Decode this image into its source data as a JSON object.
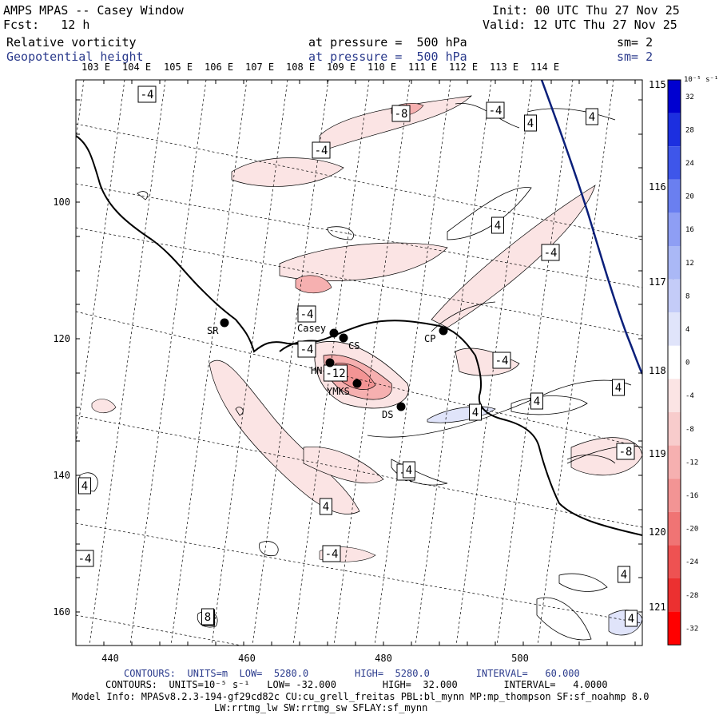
{
  "header": {
    "title": "AMPS MPAS -- Casey Window",
    "fcst": "Fcst:   12 h",
    "init": "Init: 00 UTC Thu 27 Nov 25",
    "valid": "Valid: 12 UTC Thu 27 Nov 25",
    "field1": {
      "name": "Relative vorticity",
      "pressure": "at pressure =  500 hPa",
      "sm": "sm= 2"
    },
    "field2": {
      "name": "Geopotential height",
      "pressure": "at pressure =  500 hPa",
      "sm": "sm= 2"
    }
  },
  "top_lon_labels": [
    "103 E",
    "104 E",
    "105 E",
    "106 E",
    "107 E",
    "108 E",
    "109 E",
    "110 E",
    "111 E",
    "112 E",
    "113 E",
    "114 E"
  ],
  "right_lat_labels": [
    "115 E",
    "116 E",
    "117 E",
    "118 E",
    "119 E",
    "120 E",
    "121 E"
  ],
  "x_axis": {
    "ticks": [
      "440",
      "460",
      "480",
      "500"
    ]
  },
  "y_axis": {
    "ticks": [
      "100",
      "120",
      "140",
      "160"
    ]
  },
  "stations": [
    "SR",
    "Casey",
    "CS",
    "CP",
    "HN",
    "YMKS",
    "DS"
  ],
  "contour_labels": [
    "-4",
    "-8",
    "-4",
    "4",
    "4",
    "-4",
    "4",
    "-4",
    "-4",
    "-4",
    "-12",
    "-4",
    "4",
    "4",
    "-8",
    "4",
    "-4",
    "4",
    "4",
    "-4",
    "-4",
    "4",
    "4",
    "4",
    "4",
    "8"
  ],
  "colorbar": {
    "units": "10⁻⁵ s⁻¹",
    "ticks": [
      "32",
      "28",
      "24",
      "20",
      "16",
      "12",
      "8",
      "4",
      "0",
      "-4",
      "-8",
      "-12",
      "-16",
      "-20",
      "-24",
      "-28",
      "-32"
    ],
    "colors": [
      "#0000d0",
      "#1c2fe0",
      "#3e56ea",
      "#6a7ff0",
      "#8e9ef4",
      "#aab8f6",
      "#c4ccf8",
      "#e0e4fa",
      "#ffffff",
      "#fbe4e4",
      "#f8cccc",
      "#f6b0b0",
      "#f39494",
      "#f07474",
      "#ee5252",
      "#ec3030",
      "#ff0000"
    ]
  },
  "footer": {
    "contours_height": "CONTOURS:  UNITS=m  LOW=  5280.0        HIGH=  5280.0        INTERVAL=   60.000",
    "contours_vort": "CONTOURS:  UNITS=10⁻⁵ s⁻¹   LOW= -32.000        HIGH=  32.000        INTERVAL=   4.0000",
    "model_info": "Model Info: MPASv8.2.3-194-gf29cd82c CU:cu_grell_freitas PBL:bl_mynn MP:mp_thompson SF:sf_noahmp 8.0",
    "model_info2": "LW:rrtmg_lw SW:rrtmg_sw SFLAY:sf_mynn"
  }
}
